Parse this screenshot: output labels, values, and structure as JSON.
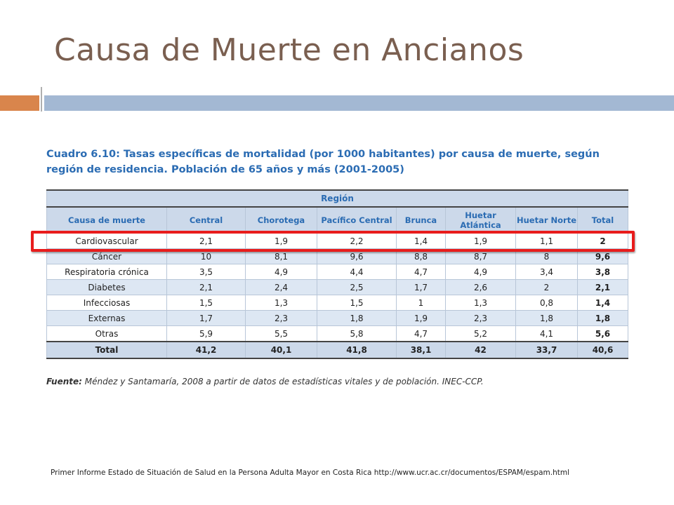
{
  "slide": {
    "title": "Causa de Muerte en Ancianos",
    "caption": "Cuadro 6.10: Tasas específicas de mortalidad (por 1000 habitantes) por causa de muerte, según región de residencia. Población de 65 años y más (2001-2005)",
    "source_label": "Fuente:",
    "source_text": "Méndez y Santamaría, 2008 a partir de datos de estadísticas vitales y de población. INEC-CCP.",
    "footer_ref": "Primer Informe Estado de Situación de Salud en la Persona Adulta Mayor en Costa Rica http://www.ucr.ac.cr/documentos/ESPAM/espam.html",
    "colors": {
      "title": "#7a5f50",
      "accent_orange": "#d9854c",
      "accent_blue": "#a3b8d3",
      "caption_blue": "#2b6cb3",
      "highlight_red": "#e81c1c"
    }
  },
  "table": {
    "region_header": "Región",
    "columns": [
      "Causa de muerte",
      "Central",
      "Chorotega",
      "Pacífico Central",
      "Brunca",
      "Huetar Atlántica",
      "Huetar Norte",
      "Total"
    ],
    "rows": [
      [
        "Cardiovascular",
        "2,1",
        "1,9",
        "2,2",
        "1,4",
        "1,9",
        "1,1",
        "2"
      ],
      [
        "Cáncer",
        "10",
        "8,1",
        "9,6",
        "8,8",
        "8,7",
        "8",
        "9,6"
      ],
      [
        "Respiratoria crónica",
        "3,5",
        "4,9",
        "4,4",
        "4,7",
        "4,9",
        "3,4",
        "3,8"
      ],
      [
        "Diabetes",
        "2,1",
        "2,4",
        "2,5",
        "1,7",
        "2,6",
        "2",
        "2,1"
      ],
      [
        "Infecciosas",
        "1,5",
        "1,3",
        "1,5",
        "1",
        "1,3",
        "0,8",
        "1,4"
      ],
      [
        "Externas",
        "1,7",
        "2,3",
        "1,8",
        "1,9",
        "2,3",
        "1,8",
        "1,8"
      ],
      [
        "Otras",
        "5,9",
        "5,5",
        "5,8",
        "4,7",
        "5,2",
        "4,1",
        "5,6"
      ]
    ],
    "total_row": [
      "Total",
      "41,2",
      "40,1",
      "41,8",
      "38,1",
      "42",
      "33,7",
      "40,6"
    ],
    "highlighted_row": "Cardiovascular"
  }
}
